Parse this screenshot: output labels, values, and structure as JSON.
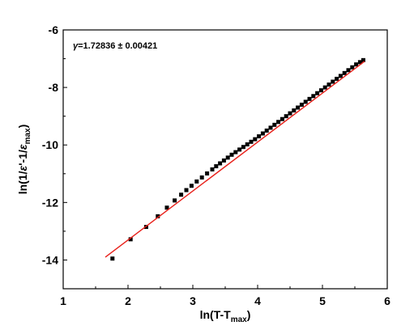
{
  "chart_data": {
    "type": "scatter",
    "title": "",
    "xlabel": {
      "main": "ln(T-T",
      "sub": "max",
      "tail": ")"
    },
    "ylabel": {
      "p1": "ln(1/",
      "eps1": "ε",
      "p2": "'-1/",
      "eps2": "ε",
      "sub": "max",
      "p3": ")"
    },
    "annotation": {
      "symbol": "γ",
      "text": "=1.72836 ± 0.00421"
    },
    "xlim": [
      1,
      6
    ],
    "ylim": [
      -15,
      -6
    ],
    "xticks": [
      1,
      2,
      3,
      4,
      5,
      6
    ],
    "yticks": [
      -14,
      -12,
      -10,
      -8,
      -6
    ],
    "grid": false,
    "legend": "none",
    "marker_color": "#000000",
    "fit_color": "#e8201a",
    "series": [
      {
        "x": [
          1.76,
          2.04,
          2.28,
          2.46,
          2.6,
          2.72,
          2.82,
          2.9,
          2.98,
          3.06,
          3.14,
          3.22,
          3.3,
          3.36,
          3.42,
          3.48,
          3.54,
          3.6,
          3.66,
          3.72,
          3.78,
          3.84,
          3.9,
          3.96,
          4.02,
          4.08,
          4.14,
          4.2,
          4.26,
          4.32,
          4.38,
          4.44,
          4.5,
          4.56,
          4.62,
          4.68,
          4.74,
          4.8,
          4.86,
          4.92,
          4.98,
          5.04,
          5.1,
          5.16,
          5.22,
          5.28,
          5.34,
          5.4,
          5.46,
          5.52,
          5.58,
          5.63
        ],
        "y": [
          -13.95,
          -13.28,
          -12.85,
          -12.48,
          -12.18,
          -11.93,
          -11.73,
          -11.57,
          -11.42,
          -11.27,
          -11.13,
          -10.99,
          -10.85,
          -10.74,
          -10.64,
          -10.54,
          -10.44,
          -10.34,
          -10.25,
          -10.16,
          -10.07,
          -9.98,
          -9.89,
          -9.8,
          -9.7,
          -9.6,
          -9.5,
          -9.4,
          -9.3,
          -9.2,
          -9.1,
          -9.0,
          -8.9,
          -8.8,
          -8.7,
          -8.6,
          -8.5,
          -8.4,
          -8.3,
          -8.2,
          -8.1,
          -8.0,
          -7.9,
          -7.8,
          -7.7,
          -7.6,
          -7.5,
          -7.4,
          -7.3,
          -7.2,
          -7.12,
          -7.05
        ]
      }
    ],
    "fit": {
      "x": [
        1.65,
        5.65
      ],
      "y": [
        -13.9,
        -7.09
      ]
    }
  }
}
